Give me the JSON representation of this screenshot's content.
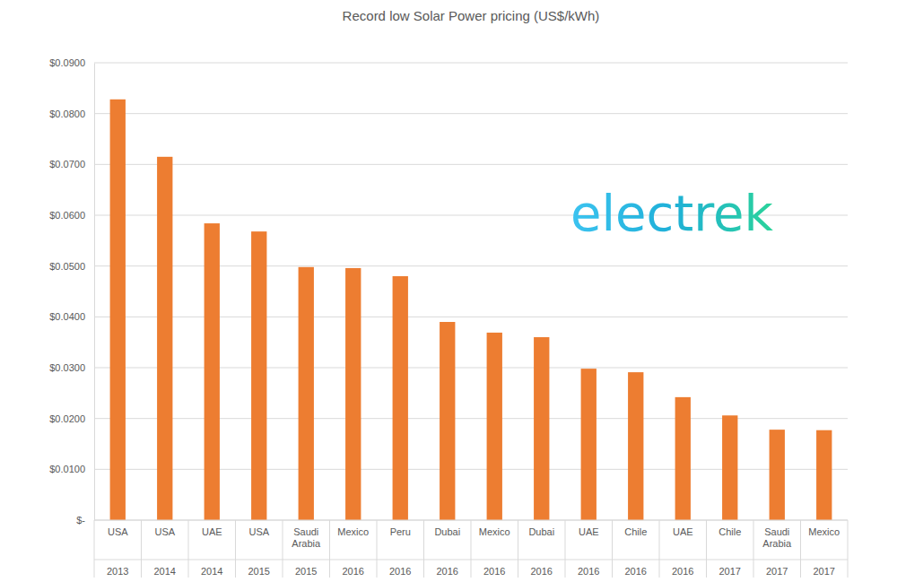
{
  "chart_data": {
    "type": "bar",
    "title": "Record low Solar Power pricing (US$/kWh)",
    "categories": [
      "USA",
      "USA",
      "UAE",
      "USA",
      "Saudi Arabia",
      "Mexico",
      "Peru",
      "Dubai",
      "Mexico",
      "Dubai",
      "UAE",
      "Chile",
      "UAE",
      "Chile",
      "Saudi Arabia",
      "Mexico"
    ],
    "category_years": [
      "2013",
      "2014",
      "2014",
      "2015",
      "2015",
      "2016",
      "2016",
      "2016",
      "2016",
      "2016",
      "2016",
      "2016",
      "2016",
      "2017",
      "2017",
      "2017"
    ],
    "values": [
      0.0828,
      0.0715,
      0.0584,
      0.0568,
      0.0498,
      0.0496,
      0.048,
      0.039,
      0.0369,
      0.036,
      0.0298,
      0.0291,
      0.0242,
      0.0206,
      0.0178,
      0.0177
    ],
    "color": "#ed7d31",
    "ylim": [
      0,
      0.09
    ],
    "yticks": [
      {
        "value": 0,
        "label": "$-"
      },
      {
        "value": 0.01,
        "label": "$0.0100"
      },
      {
        "value": 0.02,
        "label": "$0.0200"
      },
      {
        "value": 0.03,
        "label": "$0.0300"
      },
      {
        "value": 0.04,
        "label": "$0.0400"
      },
      {
        "value": 0.05,
        "label": "$0.0500"
      },
      {
        "value": 0.06,
        "label": "$0.0600"
      },
      {
        "value": 0.07,
        "label": "$0.0700"
      },
      {
        "value": 0.08,
        "label": "$0.0800"
      },
      {
        "value": 0.09,
        "label": "$0.0900"
      }
    ],
    "grid": true,
    "annotations": [
      {
        "text": "electrek"
      }
    ]
  }
}
